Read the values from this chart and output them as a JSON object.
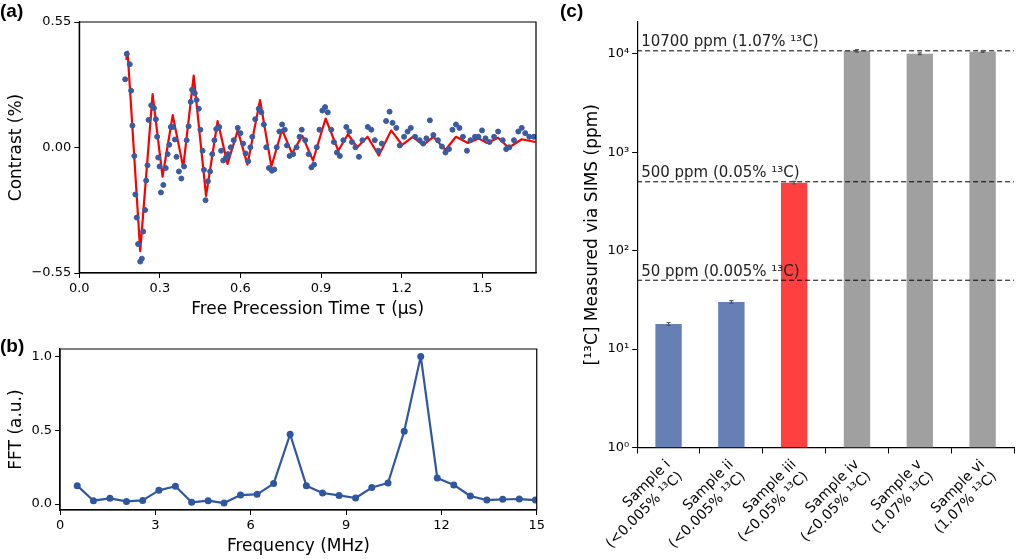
{
  "chart_data": [
    {
      "type": "scatter",
      "title": "(a)",
      "xlabel": "Free Precession Time τ (μs)",
      "ylabel": "Contrast (%)",
      "xlim": [
        0,
        1.7
      ],
      "ylim": [
        -0.55,
        0.55
      ],
      "xticks": [
        {
          "value": 0,
          "label": "0.0"
        },
        0.3,
        0.6,
        0.9,
        1.2,
        1.5
      ],
      "yticks": [
        {
          "value": -0.55,
          "label": "−0.55"
        },
        {
          "value": 0,
          "label": "0.00"
        },
        0.55
      ],
      "grid": false,
      "marker": "circle",
      "series": [
        {
          "type": "scatter",
          "color": "#3a5ba0",
          "x": [
            0.171,
            0.177,
            0.188,
            0.193,
            0.198,
            0.205,
            0.209,
            0.214,
            0.219,
            0.227,
            0.233,
            0.238,
            0.245,
            0.249,
            0.254,
            0.258,
            0.268,
            0.278,
            0.285,
            0.29,
            0.294,
            0.299,
            0.304,
            0.313,
            0.322,
            0.329,
            0.335,
            0.341,
            0.349,
            0.356,
            0.362,
            0.371,
            0.38,
            0.39,
            0.4,
            0.407,
            0.415,
            0.42,
            0.43,
            0.437,
            0.445,
            0.451,
            0.459,
            0.464,
            0.47,
            0.479,
            0.487,
            0.495,
            0.503,
            0.51,
            0.521,
            0.528,
            0.536,
            0.546,
            0.554,
            0.564,
            0.575,
            0.59,
            0.6,
            0.61,
            0.619,
            0.629,
            0.637,
            0.644,
            0.655,
            0.668,
            0.678,
            0.687,
            0.696,
            0.706,
            0.717,
            0.726,
            0.735,
            0.745,
            0.755,
            0.765,
            0.773,
            0.783,
            0.796,
            0.809,
            0.82,
            0.828,
            0.841,
            0.854,
            0.864,
            0.874,
            0.884,
            0.894,
            0.905,
            0.915,
            0.925,
            0.938,
            0.948,
            0.959,
            0.97,
            0.983,
            0.994,
            1.005,
            1.015,
            1.028,
            1.041,
            1.054,
            1.074,
            1.087,
            1.1,
            1.113,
            1.126,
            1.142,
            1.155,
            1.166,
            1.18,
            1.193,
            1.209,
            1.222,
            1.234,
            1.25,
            1.267,
            1.28,
            1.292,
            1.305,
            1.318,
            1.335,
            1.35,
            1.363,
            1.376,
            1.389,
            1.402,
            1.415,
            1.428,
            1.443,
            1.456,
            1.473,
            1.486,
            1.499,
            1.512,
            1.527,
            1.544,
            1.559,
            1.576,
            1.589,
            1.601,
            1.618,
            1.634,
            1.647,
            1.66,
            1.675,
            1.692
          ],
          "values": [
            0.299,
            0.41,
            0.365,
            0.249,
            0.096,
            -0.037,
            -0.206,
            -0.307,
            -0.423,
            -0.5,
            -0.487,
            -0.368,
            -0.274,
            -0.145,
            -0.078,
            0.121,
            0.185,
            0.173,
            0.124,
            0.047,
            -0.044,
            -0.083,
            -0.197,
            -0.164,
            -0.09,
            -0.029,
            0.012,
            0.09,
            0.09,
            0.035,
            -0.041,
            -0.105,
            -0.136,
            -0.083,
            0.032,
            0.093,
            0.2,
            0.253,
            0.238,
            0.208,
            0.17,
            0.078,
            -0.014,
            -0.098,
            -0.231,
            -0.148,
            -0.105,
            -0.029,
            0.032,
            0.081,
            0.09,
            -0.014,
            -0.057,
            -0.044,
            -0.029,
            0.001,
            0.032,
            0.086,
            0.063,
            0.017,
            -0.026,
            -0.06,
            0.001,
            0.047,
            0.124,
            0.17,
            0.154,
            0.101,
            0.001,
            -0.09,
            -0.102,
            -0.096,
            0.001,
            0.07,
            0.101,
            0.078,
            0.009,
            -0.037,
            -0.029,
            0.001,
            0.047,
            0.078,
            0.032,
            -0.029,
            -0.087,
            -0.075,
            0.001,
            0.078,
            0.162,
            0.177,
            0.154,
            0.078,
            0.024,
            -0.022,
            -0.037,
            0.032,
            0.09,
            0.07,
            0.024,
            0.001,
            -0.041,
            0.032,
            0.09,
            0.078,
            0.032,
            -0.014,
            0.017,
            0.116,
            0.157,
            0.108,
            0.086,
            0.009,
            0.047,
            0.07,
            0.086,
            0.047,
            0.032,
            0.017,
            0.04,
            0.119,
            0.055,
            0.032,
            0.004,
            -0.022,
            -0.007,
            0.078,
            0.101,
            0.086,
            0.047,
            -0.014,
            0.032,
            0.047,
            0.047,
            0.075,
            0.04,
            0.024,
            0.047,
            0.07,
            0.032,
            -0.007,
            0.001,
            0.032,
            0.07,
            0.086,
            0.063,
            0.047,
            0.047
          ]
        },
        {
          "type": "line",
          "color": "#ff0000",
          "marker": "none",
          "x": [
            0.175,
            0.18,
            0.227,
            0.273,
            0.31,
            0.348,
            0.387,
            0.426,
            0.472,
            0.515,
            0.552,
            0.59,
            0.626,
            0.673,
            0.715,
            0.755,
            0.792,
            0.83,
            0.87,
            0.917,
            0.964,
            1.0,
            1.035,
            1.073,
            1.115,
            1.161,
            1.202,
            1.241,
            1.28,
            1.318,
            1.363,
            1.402,
            1.447,
            1.486,
            1.518,
            1.559,
            1.598,
            1.647,
            1.698
          ],
          "values": [
            0.384,
            0.42,
            -0.454,
            0.234,
            -0.128,
            0.142,
            -0.087,
            0.315,
            -0.212,
            0.116,
            -0.072,
            0.075,
            -0.075,
            0.208,
            -0.083,
            0.078,
            -0.026,
            0.052,
            -0.057,
            0.127,
            -0.014,
            0.058,
            0.001,
            0.047,
            -0.035,
            0.075,
            0.011,
            0.047,
            0.012,
            0.047,
            -0.011,
            0.047,
            0.02,
            0.04,
            0.02,
            0.043,
            -0.001,
            0.036,
            0.024
          ]
        }
      ]
    },
    {
      "type": "line",
      "title": "(b)",
      "xlabel": "Frequency (MHz)",
      "ylabel": "FFT (a.u.)",
      "xlim": [
        0,
        15
      ],
      "ylim": [
        -0.04,
        1.05
      ],
      "xticks": [
        0,
        3,
        6,
        9,
        12,
        15
      ],
      "yticks": [
        {
          "value": 0,
          "label": "0.0"
        },
        0.5,
        {
          "value": 1,
          "label": "1.0"
        }
      ],
      "grid": false,
      "marker": "circle",
      "series": [
        {
          "color": "#2f56a0",
          "x": [
            0.54,
            1.05,
            1.57,
            2.09,
            2.6,
            3.11,
            3.63,
            4.14,
            4.66,
            5.16,
            5.68,
            6.2,
            6.72,
            7.24,
            7.75,
            8.26,
            8.78,
            9.3,
            9.81,
            10.32,
            10.83,
            11.35,
            11.87,
            12.39,
            12.91,
            13.43,
            13.93,
            14.45,
            14.96
          ],
          "values": [
            0.125,
            0.023,
            0.039,
            0.018,
            0.025,
            0.093,
            0.121,
            0.012,
            0.023,
            0.007,
            0.061,
            0.066,
            0.139,
            0.473,
            0.125,
            0.075,
            0.059,
            0.041,
            0.112,
            0.143,
            0.493,
            1.0,
            0.177,
            0.13,
            0.055,
            0.027,
            0.032,
            0.034,
            0.027
          ]
        }
      ]
    },
    {
      "type": "bar",
      "title": "(c)",
      "ylabel": "[¹³C] Measured via SIMS (ppm)",
      "log": "y",
      "ylim": [
        1,
        21000
      ],
      "yticks": [
        {
          "value": 1,
          "label": "10⁰"
        },
        {
          "value": 10,
          "label": "10¹"
        },
        {
          "value": 100,
          "label": "10²"
        },
        {
          "value": 1000,
          "label": "10³"
        },
        {
          "value": 10000,
          "label": "10⁴"
        }
      ],
      "grid": false,
      "categories": [
        "Sample i\n(<0.005% ¹³C)",
        "Sample ii\n(<0.005% ¹³C)",
        "Sample iii\n(<0.05% ¹³C)",
        "Sample iv\n(<0.05% ¹³C)",
        "Sample v\n(1.07% ¹³C)",
        "Sample vi\n(1.07% ¹³C)"
      ],
      "values": [
        18,
        30,
        490,
        10700,
        10000,
        10500
      ],
      "errors": [
        0.6,
        1,
        15,
        300,
        200,
        200
      ],
      "colors": [
        "#6680b5",
        "#6680b5",
        "#ff4040",
        "#a0a0a0",
        "#a0a0a0",
        "#a0a0a0"
      ],
      "ref_lines": [
        {
          "axis": "y",
          "value": 10700,
          "label": "10700 ppm (1.07% ¹³C)",
          "line_style": "dashed",
          "color": "#000000"
        },
        {
          "axis": "y",
          "value": 500,
          "label": "500 ppm (0.05% ¹³C)",
          "line_style": "dashed",
          "color": "#000000"
        },
        {
          "axis": "y",
          "value": 50,
          "label": "50 ppm (0.005% ¹³C)",
          "line_style": "dashed",
          "color": "#000000"
        }
      ]
    }
  ]
}
